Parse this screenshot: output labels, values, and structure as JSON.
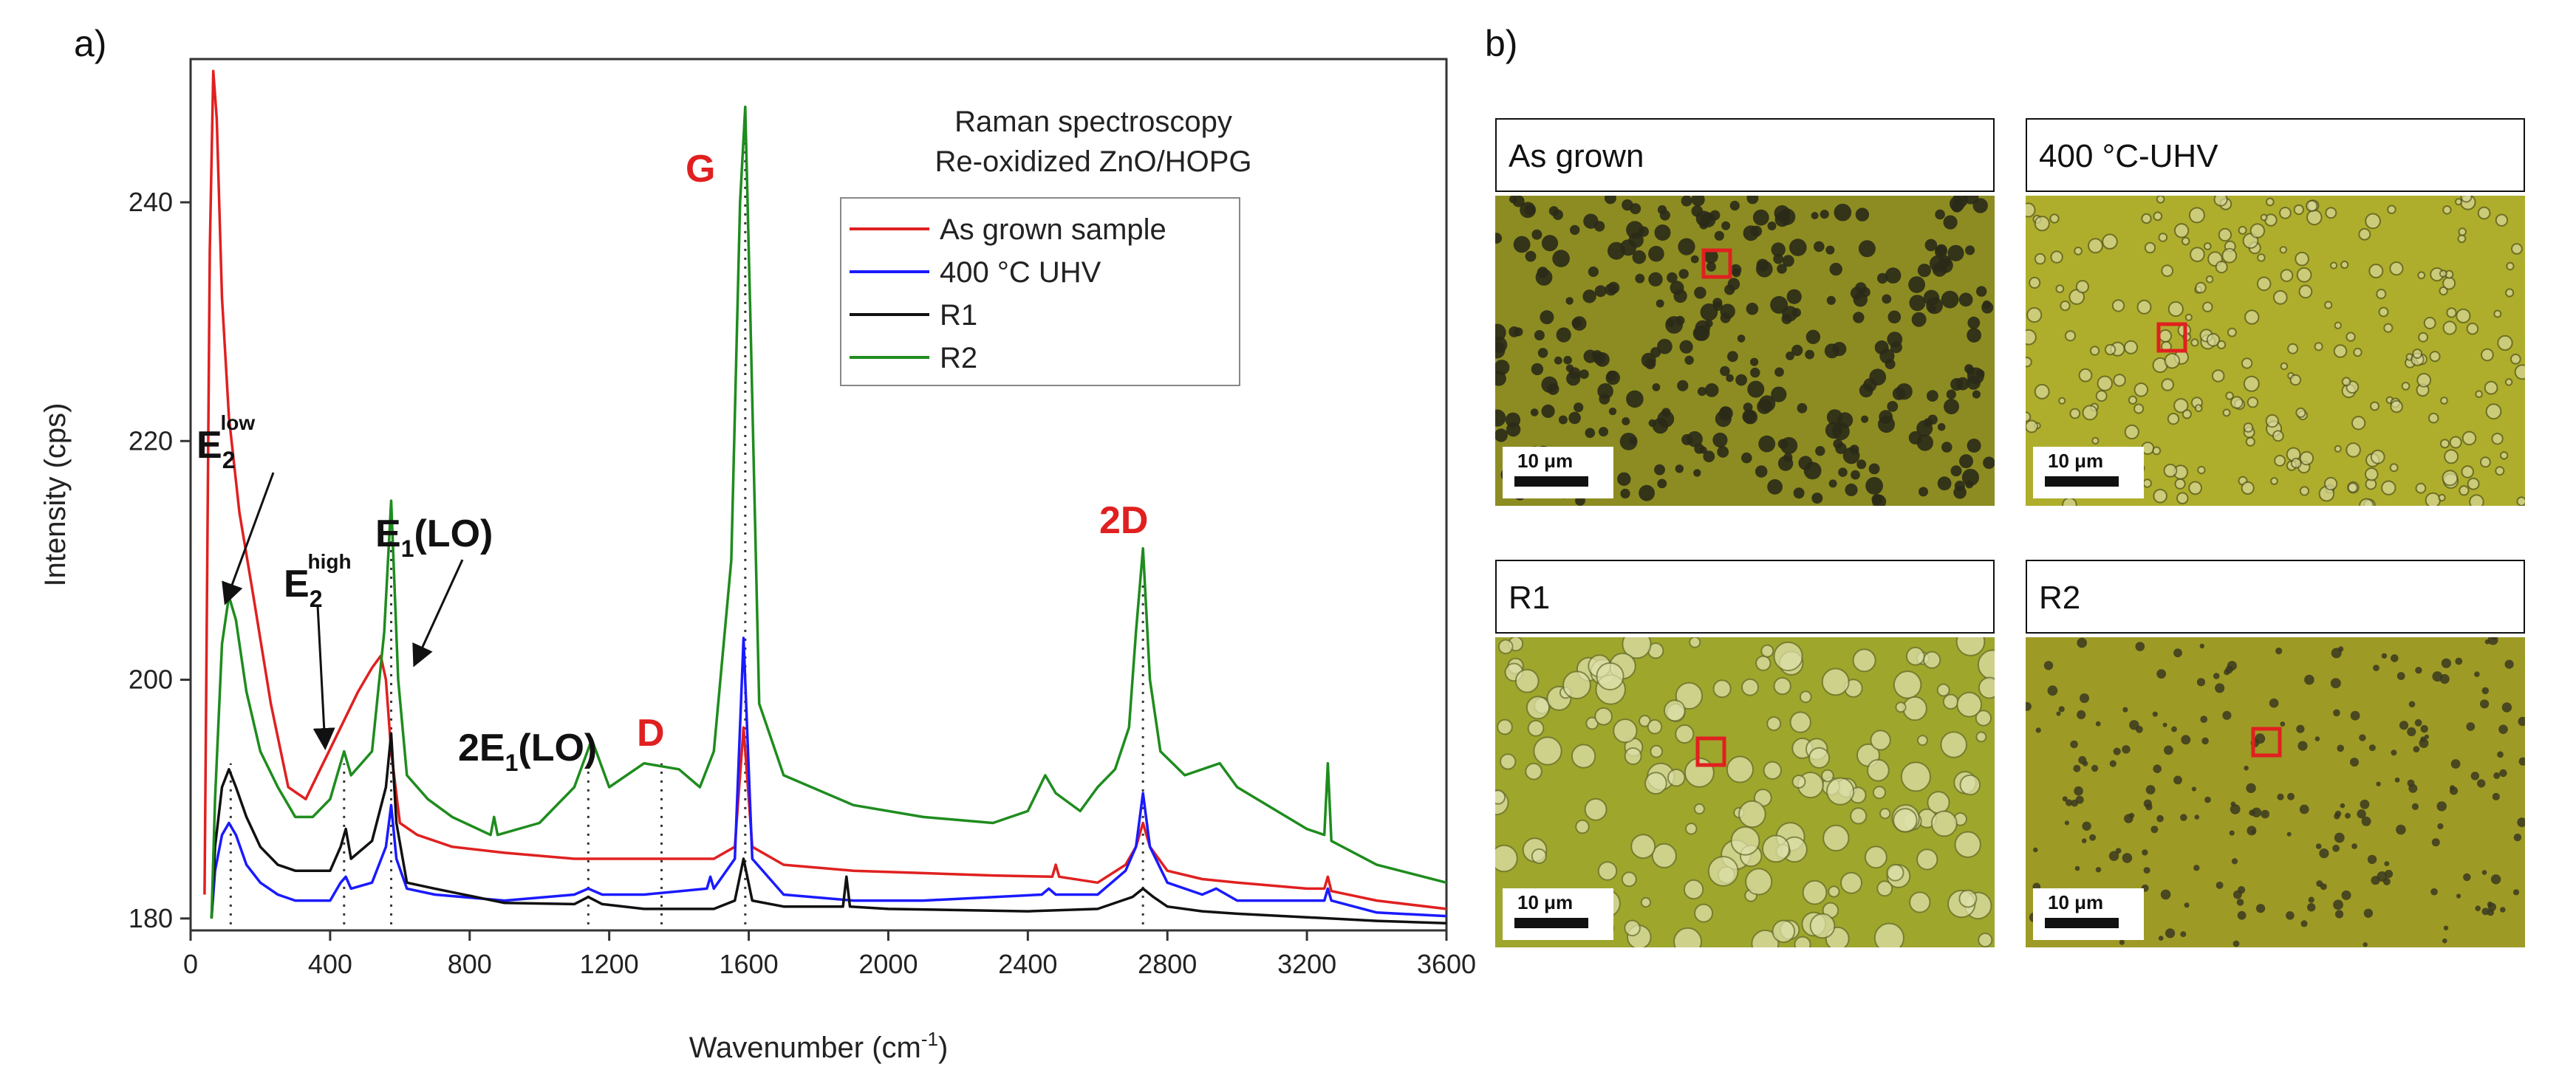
{
  "panel_a_label": "a)",
  "panel_b_label": "b)",
  "chart_data": {
    "type": "line",
    "title": "Raman spectroscopy",
    "subtitle": "Re-oxidized ZnO/HOPG",
    "xlabel": "Wavenumber (cm",
    "xlabel_sup": "-1",
    "xlabel_end": ")",
    "ylabel": "Intensity (cps)",
    "xlim": [
      0,
      3600
    ],
    "ylim": [
      179,
      252
    ],
    "x_ticks": [
      0,
      400,
      800,
      1200,
      1600,
      2000,
      2400,
      2800,
      3200,
      3600
    ],
    "y_ticks": [
      180,
      200,
      220,
      240
    ],
    "legend_position": "top-right",
    "series": [
      {
        "name": "As grown sample",
        "color": "#e02020",
        "x": [
          40,
          55,
          65,
          75,
          90,
          110,
          140,
          180,
          230,
          280,
          330,
          380,
          430,
          480,
          520,
          545,
          560,
          575,
          600,
          650,
          750,
          900,
          1100,
          1300,
          1500,
          1560,
          1585,
          1610,
          1700,
          1900,
          2100,
          2300,
          2470,
          2480,
          2490,
          2600,
          2680,
          2710,
          2730,
          2750,
          2800,
          2900,
          3000,
          3200,
          3250,
          3260,
          3270,
          3400,
          3600
        ],
        "y": [
          182,
          236,
          251,
          247,
          232,
          222,
          214,
          207,
          198,
          191,
          190,
          193,
          196,
          199,
          201,
          202,
          200,
          194,
          188,
          187,
          186,
          185.5,
          185,
          185,
          185,
          186,
          196,
          186,
          184.5,
          184,
          183.8,
          183.6,
          183.5,
          184.5,
          183.5,
          183,
          184.5,
          186,
          188,
          186,
          184,
          183.3,
          183,
          182.5,
          182.5,
          183.5,
          182.3,
          181.5,
          180.8
        ]
      },
      {
        "name": "400 °C UHV",
        "color": "#1a1aff",
        "x": [
          60,
          70,
          90,
          110,
          130,
          160,
          200,
          250,
          300,
          400,
          430,
          445,
          460,
          520,
          560,
          575,
          590,
          620,
          700,
          900,
          1100,
          1140,
          1180,
          1300,
          1480,
          1490,
          1500,
          1560,
          1585,
          1610,
          1700,
          1900,
          2100,
          2440,
          2460,
          2480,
          2600,
          2680,
          2710,
          2730,
          2750,
          2800,
          2900,
          2940,
          3000,
          3200,
          3250,
          3260,
          3270,
          3400,
          3600
        ],
        "y": [
          180,
          184,
          187,
          188,
          187,
          184.5,
          183,
          182,
          181.5,
          181.5,
          183,
          183.5,
          182.5,
          183,
          186,
          189.5,
          185,
          182.5,
          182,
          181.5,
          182,
          182.5,
          182,
          182,
          182.5,
          183.5,
          182.5,
          185,
          203.5,
          185,
          182,
          181.5,
          181.5,
          182,
          182.5,
          182,
          182,
          184,
          186,
          190.5,
          186,
          183,
          182,
          182.5,
          181.5,
          181.5,
          181.5,
          182.5,
          181.5,
          180.5,
          180.2
        ]
      },
      {
        "name": "R1",
        "color": "#111111",
        "x": [
          60,
          70,
          90,
          110,
          130,
          160,
          200,
          250,
          300,
          400,
          430,
          445,
          460,
          520,
          560,
          575,
          590,
          620,
          700,
          900,
          1100,
          1140,
          1180,
          1300,
          1500,
          1560,
          1585,
          1610,
          1700,
          1870,
          1880,
          1890,
          2000,
          2400,
          2600,
          2700,
          2730,
          2760,
          2800,
          2900,
          3000,
          3200,
          3400,
          3600
        ],
        "y": [
          180,
          186,
          191,
          192.5,
          191,
          188.5,
          186,
          184.5,
          184,
          184,
          186,
          187.5,
          185,
          186.5,
          191,
          195.5,
          188,
          183,
          182.5,
          181.3,
          181.2,
          181.8,
          181.2,
          180.8,
          180.8,
          181.5,
          185,
          181.5,
          181,
          181,
          183.5,
          181,
          180.8,
          180.6,
          180.8,
          181.8,
          182.5,
          181.8,
          181,
          180.6,
          180.4,
          180.1,
          179.8,
          179.6
        ]
      },
      {
        "name": "R2",
        "color": "#1e8c1e",
        "x": [
          60,
          70,
          90,
          110,
          130,
          160,
          200,
          250,
          300,
          350,
          400,
          420,
          440,
          460,
          520,
          555,
          575,
          595,
          620,
          680,
          750,
          860,
          870,
          880,
          1000,
          1100,
          1150,
          1200,
          1300,
          1400,
          1460,
          1500,
          1550,
          1575,
          1590,
          1605,
          1630,
          1700,
          1900,
          2100,
          2300,
          2400,
          2450,
          2480,
          2550,
          2600,
          2650,
          2690,
          2710,
          2730,
          2750,
          2780,
          2850,
          2950,
          3000,
          3200,
          3250,
          3260,
          3270,
          3400,
          3600
        ],
        "y": [
          180,
          190,
          203,
          207,
          205,
          199,
          194,
          191,
          188.5,
          188.5,
          190,
          192,
          194,
          192,
          194,
          204,
          215,
          200,
          192,
          190,
          188.5,
          187,
          188.5,
          187,
          188,
          191,
          195,
          191,
          193,
          192.5,
          191,
          194,
          210,
          240,
          248,
          230,
          198,
          192,
          189.5,
          188.5,
          188,
          189,
          192,
          190.5,
          189,
          191,
          192.5,
          196,
          204,
          211,
          200,
          194,
          192,
          193,
          191,
          187.5,
          187,
          193,
          186.5,
          184.5,
          183
        ]
      }
    ],
    "annotations": [
      {
        "text": "E",
        "sub": "2",
        "sup": "low",
        "color": "#111111"
      },
      {
        "text": "E",
        "sub": "2",
        "sup": "high",
        "color": "#111111"
      },
      {
        "text": "E",
        "sub": "1",
        "rest": "(LO)",
        "color": "#111111"
      },
      {
        "text": "2E",
        "sub": "1",
        "rest": "(LO)",
        "color": "#111111"
      },
      {
        "text": "D",
        "color": "#e02020"
      },
      {
        "text": "G",
        "color": "#e02020"
      },
      {
        "text": "2D",
        "color": "#e02020"
      }
    ],
    "dotted_guides_x": [
      115,
      440,
      575,
      1140,
      1350,
      1590,
      2730
    ]
  },
  "micrographs": [
    {
      "title": "As grown",
      "scale": "10 μm"
    },
    {
      "title": "400 °C-UHV",
      "scale": "10 μm"
    },
    {
      "title": "R1",
      "scale": "10 μm"
    },
    {
      "title": "R2",
      "scale": "10 μm"
    }
  ],
  "colors": {
    "marker": "#e02020",
    "film": "#a7a530",
    "island": "#2a2a18"
  }
}
